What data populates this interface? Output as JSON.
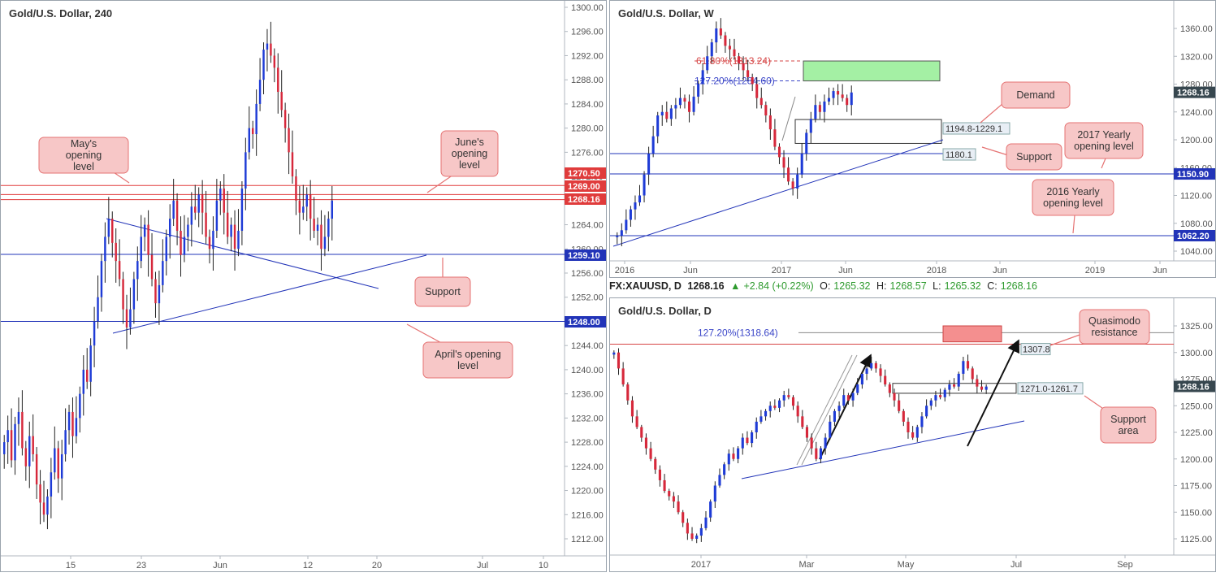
{
  "panels": {
    "h4": {
      "title": "Gold/U.S. Dollar, 240",
      "yticks": [
        "1300.00",
        "1296.00",
        "1292.00",
        "1288.00",
        "1284.00",
        "1280.00",
        "1276.00",
        "1272.00",
        "1268.00",
        "1264.00",
        "1260.00",
        "1256.00",
        "1252.00",
        "1248.00",
        "1244.00",
        "1240.00",
        "1236.00",
        "1232.00",
        "1228.00",
        "1224.00",
        "1220.00",
        "1216.00",
        "1212.00"
      ],
      "xticks": [
        "15",
        "23",
        "Jun",
        "12",
        "20",
        "Jul",
        "10"
      ],
      "price_tags": [
        {
          "label": "1270.50",
          "color": "#e03b3b"
        },
        {
          "label": "1269.00",
          "color": "#e03b3b"
        },
        {
          "label": "1268.16",
          "color": "#e03b3b"
        },
        {
          "label": "1259.10",
          "color": "#2234b8"
        },
        {
          "label": "1248.00",
          "color": "#2234b8"
        }
      ],
      "callouts": [
        {
          "label": "May's opening level"
        },
        {
          "label": "June's opening level"
        },
        {
          "label": "Support"
        },
        {
          "label": "April's opening level"
        }
      ]
    },
    "weekly": {
      "title": "Gold/U.S. Dollar, W",
      "yticks": [
        "1360.00",
        "1320.00",
        "1280.00",
        "1240.00",
        "1200.00",
        "1160.00",
        "1120.00",
        "1080.00",
        "1040.00"
      ],
      "xticks": [
        "2016",
        "Jun",
        "2017",
        "Jun",
        "2018",
        "Jun",
        "2019",
        "Jun"
      ],
      "price_tags": [
        {
          "label": "1268.16",
          "color": "#37474f"
        },
        {
          "label": "1150.90",
          "color": "#2234b8"
        },
        {
          "label": "1062.20",
          "color": "#2234b8"
        }
      ],
      "fib_labels": [
        {
          "label": "61.80%(1313.24)",
          "color": "#d64545"
        },
        {
          "label": "127.20%(1284.60)",
          "color": "#3b46c8"
        }
      ],
      "zone_labels": [
        {
          "label": "1194.8-1229.1"
        },
        {
          "label": "1180.1"
        }
      ],
      "callouts": [
        {
          "label": "Demand"
        },
        {
          "label": "Support"
        },
        {
          "label": "2017 Yearly opening level"
        },
        {
          "label": "2016 Yearly opening level"
        }
      ]
    },
    "daily": {
      "title": "Gold/U.S. Dollar, D",
      "yticks": [
        "1325.00",
        "1300.00",
        "1275.00",
        "1250.00",
        "1225.00",
        "1200.00",
        "1175.00",
        "1150.00",
        "1125.00"
      ],
      "xticks": [
        "2017",
        "Mar",
        "May",
        "Jul",
        "Sep"
      ],
      "price_tags": [
        {
          "label": "1268.16",
          "color": "#37474f"
        }
      ],
      "fib_labels": [
        {
          "label": "127.20%(1318.64)",
          "color": "#3b46c8"
        }
      ],
      "zone_labels": [
        {
          "label": "1307.8"
        },
        {
          "label": "1271.0-1261.7"
        }
      ],
      "callouts": [
        {
          "label": "Quasimodo resistance"
        },
        {
          "label": "Support area"
        }
      ]
    }
  },
  "infobar": {
    "symbol": "FX:XAUUSD, D",
    "last": "1268.16",
    "change": "+2.84 (+0.22%)",
    "open_label": "O:",
    "open": "1265.32",
    "high_label": "H:",
    "high": "1268.57",
    "low_label": "L:",
    "low": "1265.32",
    "close_label": "C:",
    "close": "1268.16"
  },
  "chart_data": [
    {
      "type": "candlestick",
      "title": "Gold/U.S. Dollar, 240",
      "ylim": [
        1208,
        1302
      ],
      "levels": [
        {
          "name": "June's opening level",
          "value": 1270.5,
          "color": "#e03b3b"
        },
        {
          "name": "May's opening level",
          "value": 1269.0,
          "color": "#e03b3b"
        },
        {
          "name": "last",
          "value": 1268.16,
          "color": "#e03b3b"
        },
        {
          "name": "Support",
          "value": 1259.1,
          "color": "#2234b8"
        },
        {
          "name": "April's opening level",
          "value": 1248.0,
          "color": "#2234b8"
        }
      ],
      "closes": [
        1228,
        1230,
        1225,
        1231,
        1233,
        1227,
        1224,
        1229,
        1226,
        1221,
        1218,
        1216,
        1219,
        1223,
        1227,
        1222,
        1226,
        1230,
        1233,
        1229,
        1232,
        1236,
        1240,
        1238,
        1244,
        1248,
        1252,
        1258,
        1262,
        1265,
        1261,
        1258,
        1255,
        1250,
        1247,
        1250,
        1255,
        1258,
        1262,
        1264,
        1259,
        1255,
        1251,
        1254,
        1258,
        1262,
        1265,
        1268,
        1263,
        1259,
        1262,
        1264,
        1267,
        1266,
        1269,
        1266,
        1262,
        1260,
        1263,
        1268,
        1270,
        1266,
        1262,
        1264,
        1260,
        1263,
        1270,
        1276,
        1280,
        1279,
        1284,
        1288,
        1293,
        1294,
        1292,
        1290,
        1286,
        1283,
        1280,
        1276,
        1272,
        1268,
        1266,
        1267,
        1269,
        1265,
        1263,
        1264,
        1260,
        1262,
        1265,
        1268
      ],
      "x_ticks": [
        "15",
        "23",
        "Jun",
        "12",
        "20",
        "Jul",
        "10"
      ]
    },
    {
      "type": "candlestick",
      "title": "Gold/U.S. Dollar, W",
      "ylim": [
        1020,
        1380
      ],
      "levels": [
        {
          "name": "2017 Yearly opening level",
          "value": 1150.9,
          "color": "#2234b8"
        },
        {
          "name": "2016 Yearly opening level",
          "value": 1062.2,
          "color": "#2234b8"
        },
        {
          "name": "Support",
          "value": 1180.1,
          "color": "#2234b8"
        }
      ],
      "zones": [
        {
          "name": "Demand",
          "from": 1194.8,
          "to": 1229.1
        },
        {
          "name": "green zone",
          "from": 1284.6,
          "to": 1313.24
        }
      ],
      "closes": [
        1062,
        1070,
        1085,
        1100,
        1110,
        1120,
        1150,
        1180,
        1205,
        1235,
        1240,
        1230,
        1245,
        1250,
        1260,
        1255,
        1240,
        1262,
        1280,
        1300,
        1320,
        1340,
        1360,
        1350,
        1335,
        1330,
        1320,
        1310,
        1300,
        1290,
        1280,
        1260,
        1250,
        1235,
        1215,
        1190,
        1175,
        1160,
        1140,
        1130,
        1150,
        1180,
        1210,
        1230,
        1250,
        1240,
        1255,
        1260,
        1270,
        1265,
        1260,
        1250,
        1268
      ],
      "x_ticks": [
        "2016",
        "Jun",
        "2017",
        "Jun",
        "2018",
        "Jun",
        "2019",
        "Jun"
      ]
    },
    {
      "type": "candlestick",
      "title": "Gold/U.S. Dollar, D",
      "ylim": [
        1110,
        1340
      ],
      "levels": [
        {
          "name": "Quasimodo resistance",
          "value": 1307.8,
          "color": "#d64545"
        },
        {
          "name": "127.20%(1318.64)",
          "value": 1318.64,
          "color": "#3b46c8"
        }
      ],
      "zones": [
        {
          "name": "Support area",
          "from": 1261.7,
          "to": 1271.0
        }
      ],
      "closes": [
        1300,
        1285,
        1270,
        1255,
        1240,
        1230,
        1220,
        1210,
        1200,
        1190,
        1180,
        1170,
        1165,
        1160,
        1150,
        1140,
        1130,
        1125,
        1128,
        1135,
        1145,
        1160,
        1175,
        1185,
        1195,
        1205,
        1200,
        1210,
        1220,
        1215,
        1225,
        1235,
        1240,
        1245,
        1250,
        1248,
        1255,
        1260,
        1258,
        1250,
        1240,
        1230,
        1220,
        1210,
        1200,
        1210,
        1220,
        1235,
        1245,
        1250,
        1260,
        1255,
        1262,
        1270,
        1280,
        1285,
        1290,
        1285,
        1278,
        1270,
        1262,
        1255,
        1245,
        1235,
        1225,
        1220,
        1230,
        1240,
        1250,
        1255,
        1260,
        1258,
        1265,
        1270,
        1268,
        1280,
        1292,
        1285,
        1275,
        1268,
        1265,
        1268
      ],
      "x_ticks": [
        "2017",
        "Mar",
        "May",
        "Jul",
        "Sep"
      ]
    }
  ]
}
